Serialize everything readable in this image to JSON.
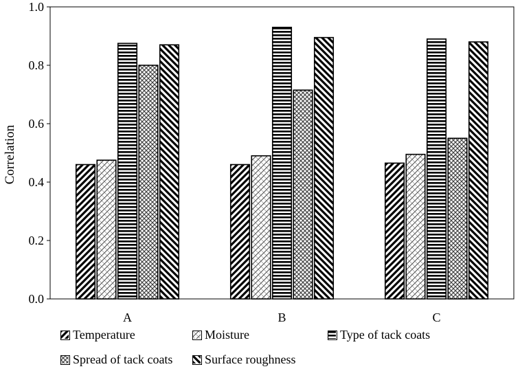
{
  "chart_data": {
    "type": "bar",
    "categories": [
      "A",
      "B",
      "C"
    ],
    "series": [
      {
        "name": "Temperature",
        "pattern": "wide-diagonal-up",
        "values": [
          0.46,
          0.46,
          0.465
        ]
      },
      {
        "name": "Moisture",
        "pattern": "light-diagonal-up",
        "values": [
          0.475,
          0.49,
          0.495
        ]
      },
      {
        "name": "Type of tack coats",
        "pattern": "horizontal",
        "values": [
          0.875,
          0.93,
          0.89
        ]
      },
      {
        "name": "Spread of tack coats",
        "pattern": "crosshatch",
        "values": [
          0.8,
          0.715,
          0.55
        ]
      },
      {
        "name": "Surface roughness",
        "pattern": "wide-diagonal-down",
        "values": [
          0.87,
          0.895,
          0.88
        ]
      }
    ],
    "xlabel": "",
    "ylabel": "Correlation",
    "ylim": [
      0.0,
      1.0
    ],
    "yticks": [
      "0.0",
      "0.2",
      "0.4",
      "0.6",
      "0.8",
      "1.0"
    ],
    "grid": false,
    "legend_position": "bottom"
  }
}
